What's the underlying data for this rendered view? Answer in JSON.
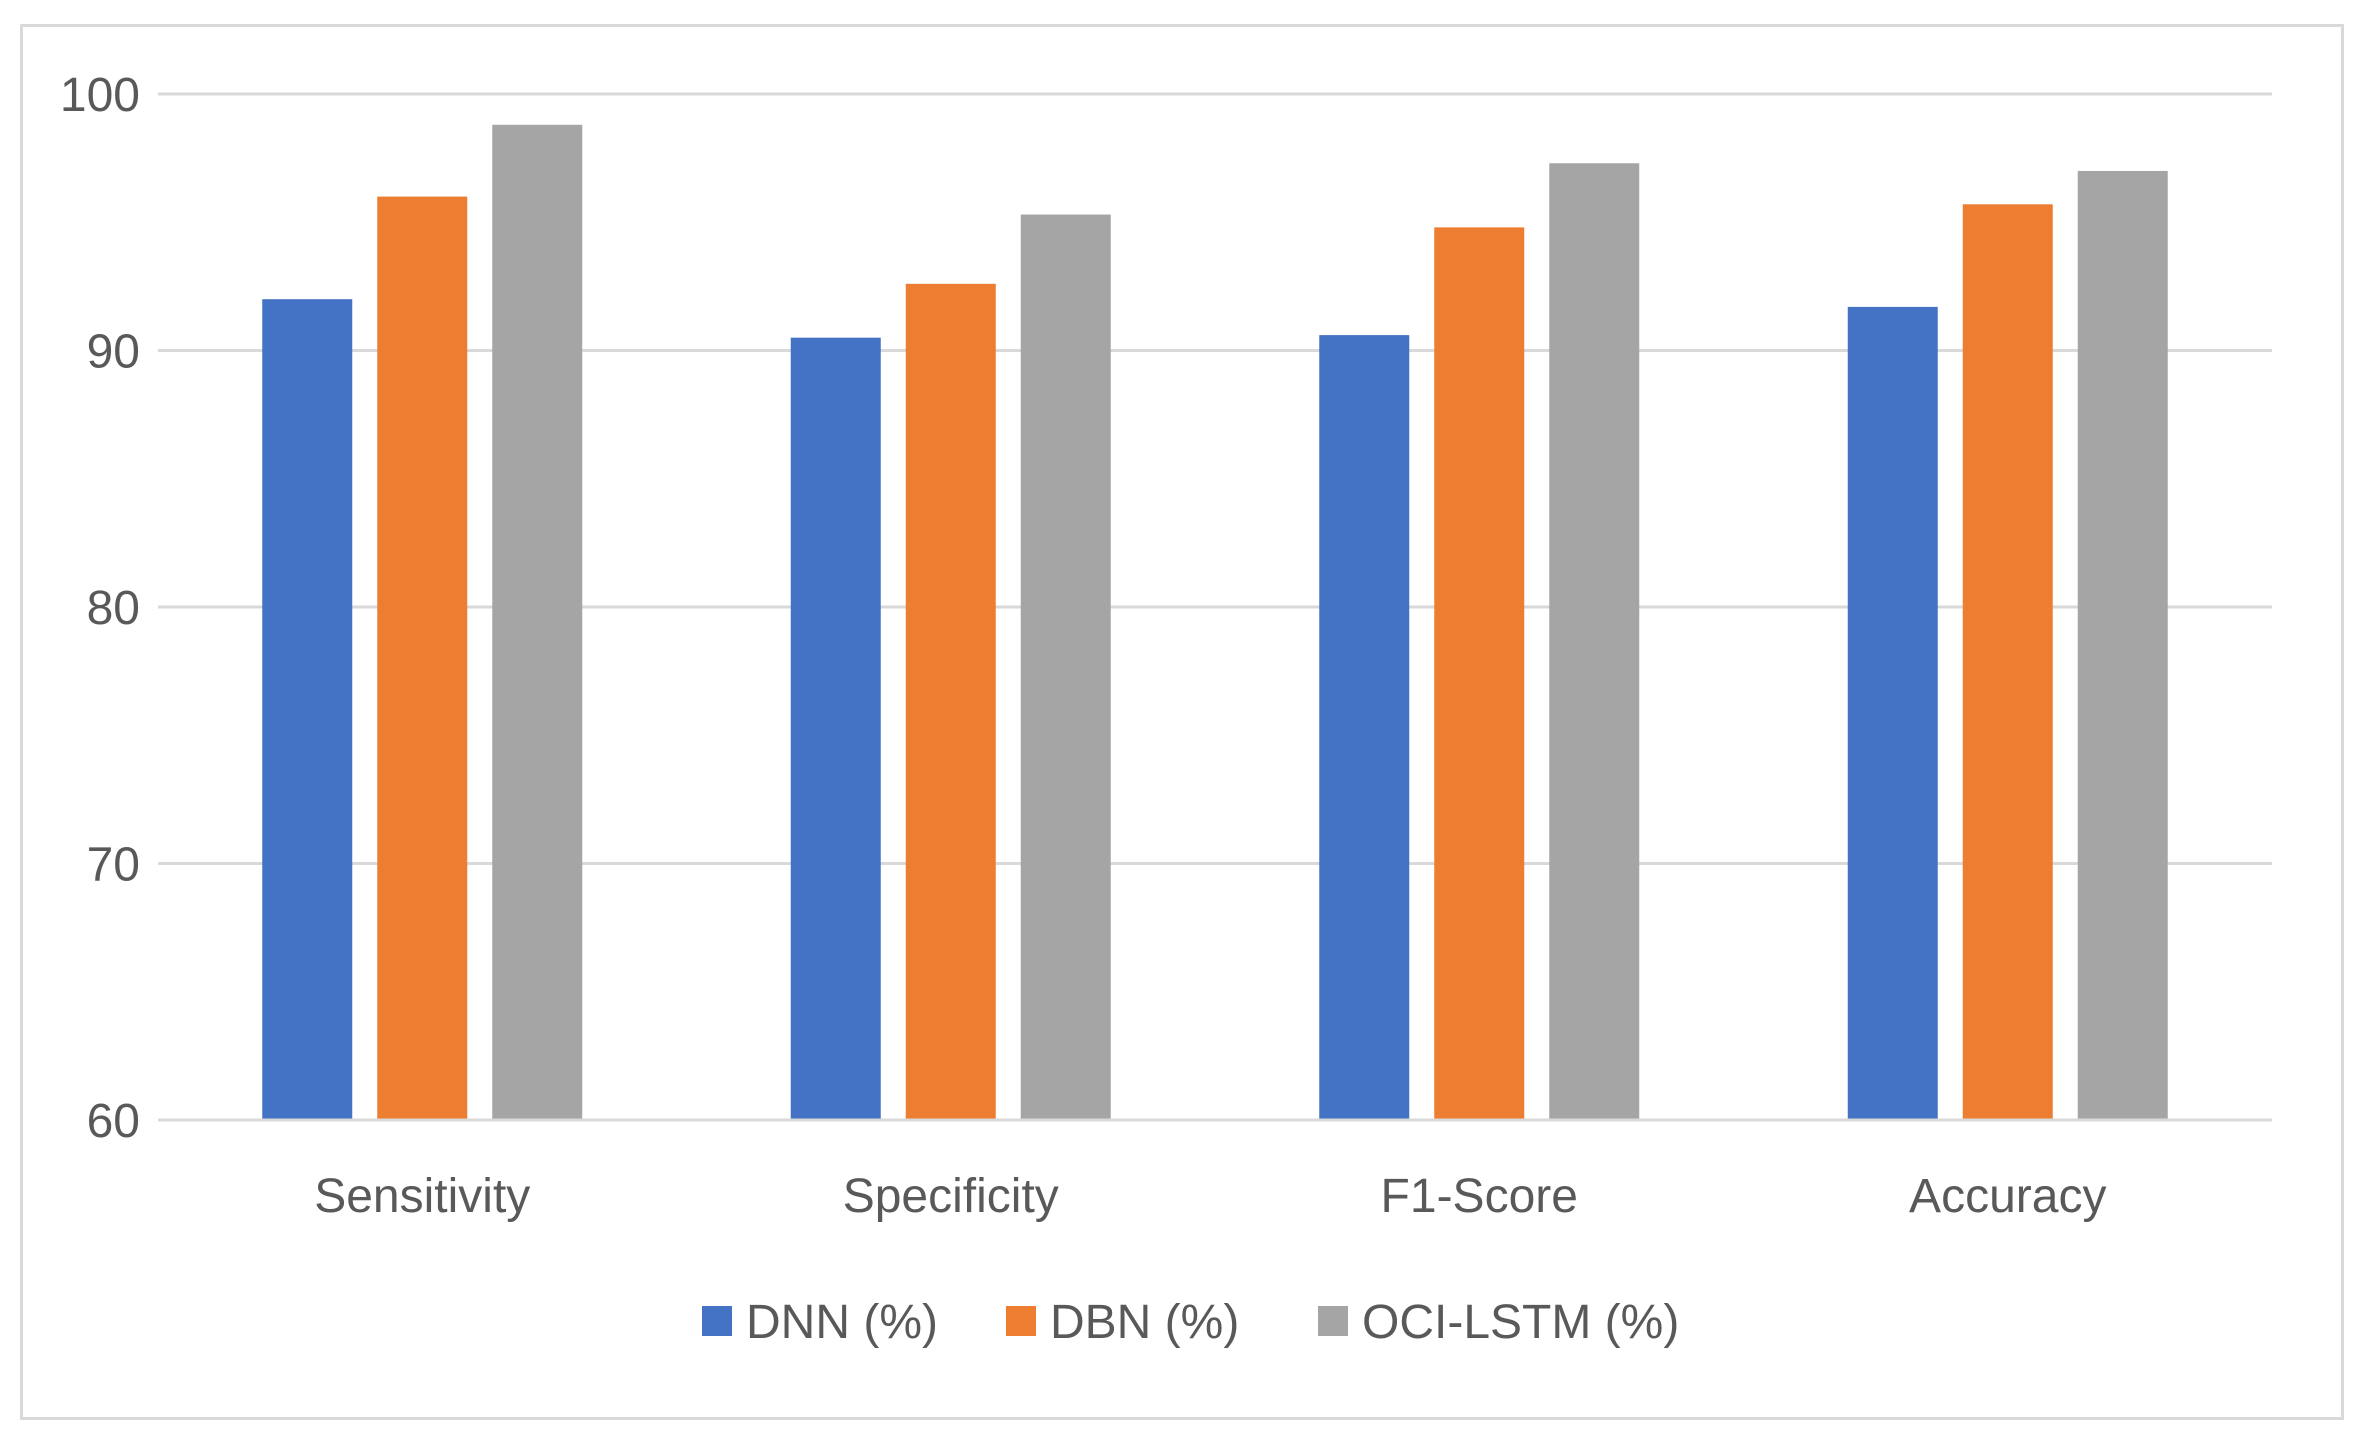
{
  "chart_data": {
    "type": "bar",
    "title": "",
    "xlabel": "",
    "ylabel": "",
    "categories": [
      "Sensitivity",
      "Specificity",
      "F1-Score",
      "Accuracy"
    ],
    "series": [
      {
        "name": "DNN (%)",
        "color": "#4472c4",
        "values": [
          92.0,
          90.5,
          90.6,
          91.7
        ]
      },
      {
        "name": "DBN (%)",
        "color": "#ed7d31",
        "values": [
          96.0,
          92.6,
          94.8,
          95.7
        ]
      },
      {
        "name": "OCI-LSTM (%)",
        "color": "#a5a5a5",
        "values": [
          98.8,
          95.3,
          97.3,
          97.0
        ]
      }
    ],
    "ylim": [
      60,
      100
    ],
    "yticks": [
      60,
      70,
      80,
      90,
      100
    ],
    "grid": true,
    "legend_position": "bottom-center"
  }
}
